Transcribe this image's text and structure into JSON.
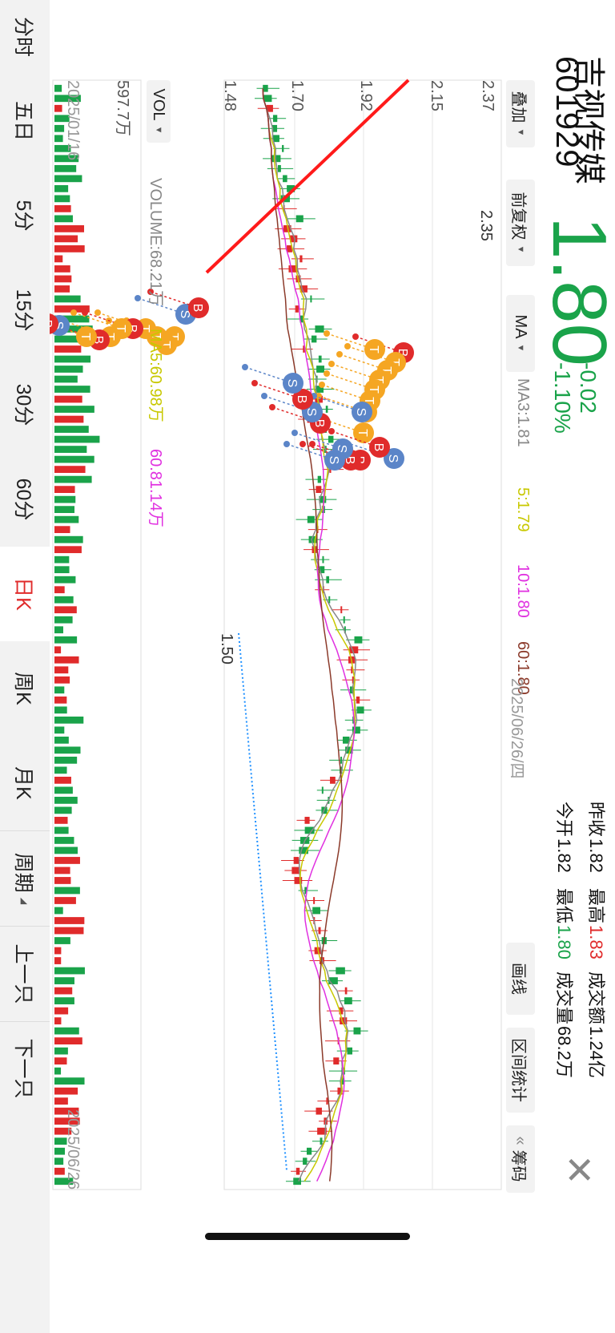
{
  "stock": {
    "name": "吉视传媒",
    "code": "601929",
    "price": "1.80",
    "change": "-0.02",
    "change_pct": "-1.10%"
  },
  "stats": {
    "prev_close_label": "昨收",
    "prev_close": "1.82",
    "high_label": "最高",
    "high": "1.83",
    "amount_label": "成交额",
    "amount": "1.24亿",
    "open_label": "今开",
    "open": "1.82",
    "low_label": "最低",
    "low": "1.80",
    "volume_label": "成交量",
    "volume": "68.2万"
  },
  "toolbar": {
    "overlay": "叠加",
    "adjust": "前复权",
    "indicator": "MA",
    "draw": "画线",
    "range_stats": "区间统计",
    "chips_prefix": "«",
    "chips": "筹码"
  },
  "ma_legend": {
    "ma3": "MA3:1.81",
    "ma5": "5:1.79",
    "ma10": "10:1.80",
    "ma60": "60:1.80"
  },
  "current_date": "2025/06/26/四",
  "price_axis": {
    "top": "2.37",
    "l2": "2.15",
    "l3": "1.92",
    "l4": "1.70",
    "bottom": "1.48"
  },
  "annotations": {
    "peak": "2.35",
    "trough": "1.50"
  },
  "volume": {
    "selector": "VOL",
    "legend_volume": "VOLUME:68.21万",
    "legend_ma5": "MA5:60.98万",
    "legend_ma10": "60.81.14万",
    "max_label": "597.7万"
  },
  "date_range": {
    "start": "2025/01/16",
    "end": "2025/06/26"
  },
  "periods": [
    "分时",
    "五日",
    "5分",
    "15分",
    "30分",
    "60分",
    "日K",
    "周K",
    "月K"
  ],
  "active_period": "日K",
  "nav": {
    "cycle": "周期",
    "prev": "上一只",
    "next": "下一只"
  },
  "colors": {
    "up": "#e02b2b",
    "down": "#1aa34a",
    "ma3": "#888888",
    "ma5": "#c8c800",
    "ma10": "#e030e0",
    "ma60": "#8b3a2a"
  },
  "markers": {
    "b": "B",
    "s": "S",
    "t": "T",
    "list": [
      [
        "B",
        440,
        264
      ],
      [
        "T",
        452,
        274
      ],
      [
        "T",
        462,
        284
      ],
      [
        "T",
        474,
        294
      ],
      [
        "T",
        486,
        300
      ],
      [
        "T",
        500,
        306
      ],
      [
        "T",
        514,
        310
      ],
      [
        "T",
        540,
        314
      ],
      [
        "S",
        572,
        276
      ],
      [
        "B",
        558,
        294
      ],
      [
        "B",
        574,
        318
      ],
      [
        "T",
        436,
        300
      ],
      [
        "S",
        514,
        316
      ],
      [
        "B",
        574,
        330
      ],
      [
        "S",
        560,
        340
      ],
      [
        "S",
        574,
        350
      ],
      [
        "B",
        528,
        368
      ],
      [
        "S",
        514,
        378
      ],
      [
        "B",
        498,
        390
      ],
      [
        "S",
        478,
        402
      ],
      [
        "S",
        392,
        536
      ],
      [
        "B",
        384,
        520
      ],
      [
        "T",
        420,
        550
      ],
      [
        "T",
        430,
        560
      ],
      [
        "T",
        420,
        572
      ],
      [
        "T",
        410,
        586
      ],
      [
        "B",
        410,
        602
      ],
      [
        "T",
        410,
        616
      ],
      [
        "T",
        420,
        630
      ],
      [
        "B",
        424,
        644
      ],
      [
        "T",
        420,
        660
      ],
      [
        "S",
        406,
        694
      ],
      [
        "B",
        404,
        708
      ],
      [
        "T",
        400,
        722
      ],
      [
        "T",
        410,
        736
      ],
      [
        "T",
        424,
        750
      ],
      [
        "T",
        450,
        770
      ],
      [
        "B",
        446,
        790
      ],
      [
        "T",
        440,
        806
      ],
      [
        "T",
        444,
        826
      ],
      [
        "B",
        434,
        842
      ],
      [
        "B",
        420,
        858
      ],
      [
        "T",
        454,
        868
      ],
      [
        "T",
        474,
        880
      ],
      [
        "T",
        480,
        890
      ],
      [
        "B",
        490,
        896
      ],
      [
        "T",
        472,
        906
      ],
      [
        "B",
        432,
        926
      ],
      [
        "T",
        438,
        940
      ],
      [
        "B",
        436,
        952
      ],
      [
        "S",
        448,
        968
      ],
      [
        "B",
        476,
        986
      ],
      [
        "T",
        460,
        998
      ],
      [
        "S",
        454,
        1026
      ],
      [
        "B",
        464,
        1064
      ],
      [
        "S",
        460,
        1078
      ],
      [
        "B",
        438,
        1142
      ],
      [
        "S",
        436,
        1196
      ],
      [
        "B",
        440,
        1220
      ]
    ]
  }
}
